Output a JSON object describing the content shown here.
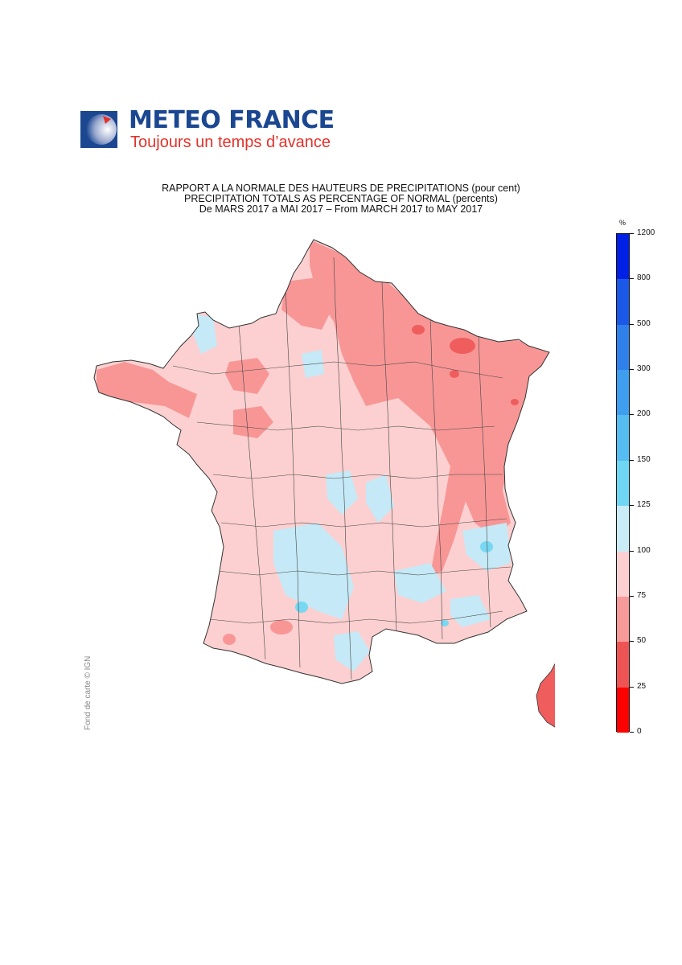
{
  "header": {
    "brand_name": "METEO FRANCE",
    "brand_slogan": "Toujours un temps d’avance",
    "brand_color": "#1b4791",
    "slogan_color": "#e2322b"
  },
  "titles": {
    "line1": "RAPPORT A LA NORMALE DES HAUTEURS DE PRECIPITATIONS (pour cent)",
    "line2": "PRECIPITATION TOTALS AS PERCENTAGE OF NORMAL (percents)",
    "line3": "De MARS 2017 a MAI 2017 – From MARCH 2017 to MAY 2017"
  },
  "map": {
    "region": "France",
    "credit": "Fond de carte © IGN",
    "dominant_class": "75-100",
    "colors": {
      "land_75_100": "#fcd0d0",
      "class_50_75": "#f89696",
      "class_25_50": "#ef5d5d",
      "class_100_125": "#c5e9f6",
      "class_125_150": "#79d8f1",
      "borders": "#333333"
    }
  },
  "legend": {
    "unit": "%",
    "breaks": [
      "0",
      "25",
      "50",
      "75",
      "100",
      "125",
      "150",
      "200",
      "300",
      "500",
      "800",
      "1200"
    ],
    "colors": [
      "#ff0000",
      "#ef5454",
      "#f79a9a",
      "#fcd0d0",
      "#c9ecf7",
      "#6fd6f3",
      "#55bdf2",
      "#3f9ef0",
      "#2f80ea",
      "#1c58e7",
      "#0020e6"
    ]
  }
}
